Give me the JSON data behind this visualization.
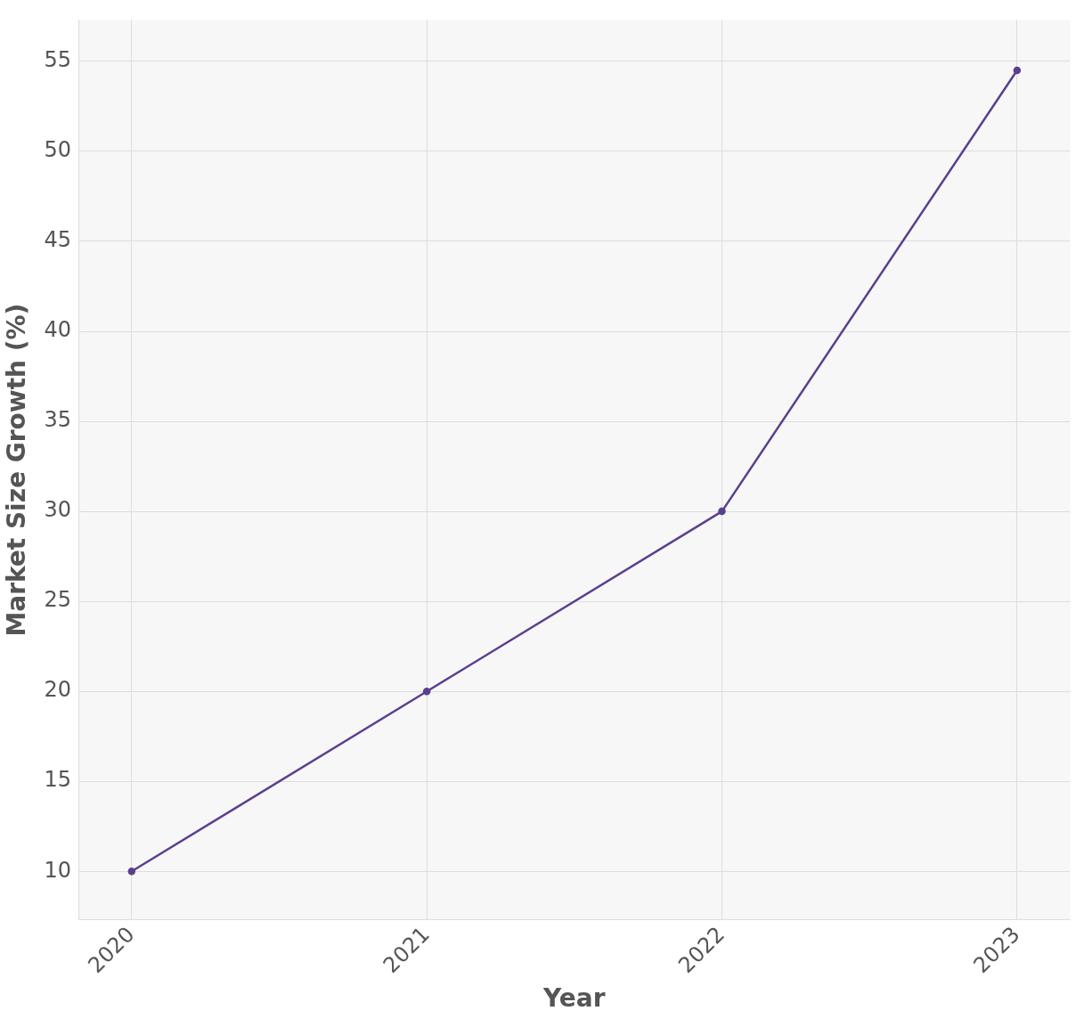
{
  "chart_data": {
    "type": "line",
    "xlabel": "Year",
    "ylabel": "Market Size Growth (%)",
    "x": [
      2020,
      2021,
      2022,
      2023
    ],
    "series": [
      {
        "color": "#5b3f8f",
        "values": [
          10,
          20,
          30,
          54.5
        ]
      }
    ],
    "xlim": [
      2019.82,
      2023.18
    ],
    "xticks": [
      2020,
      2021,
      2022,
      2023
    ],
    "ylim": [
      7.3,
      57.3
    ],
    "yticks": [
      10,
      15,
      20,
      25,
      30,
      35,
      40,
      45,
      50,
      55
    ],
    "grid": true,
    "marker": "circle",
    "line_style": "solid",
    "legend": false
  }
}
